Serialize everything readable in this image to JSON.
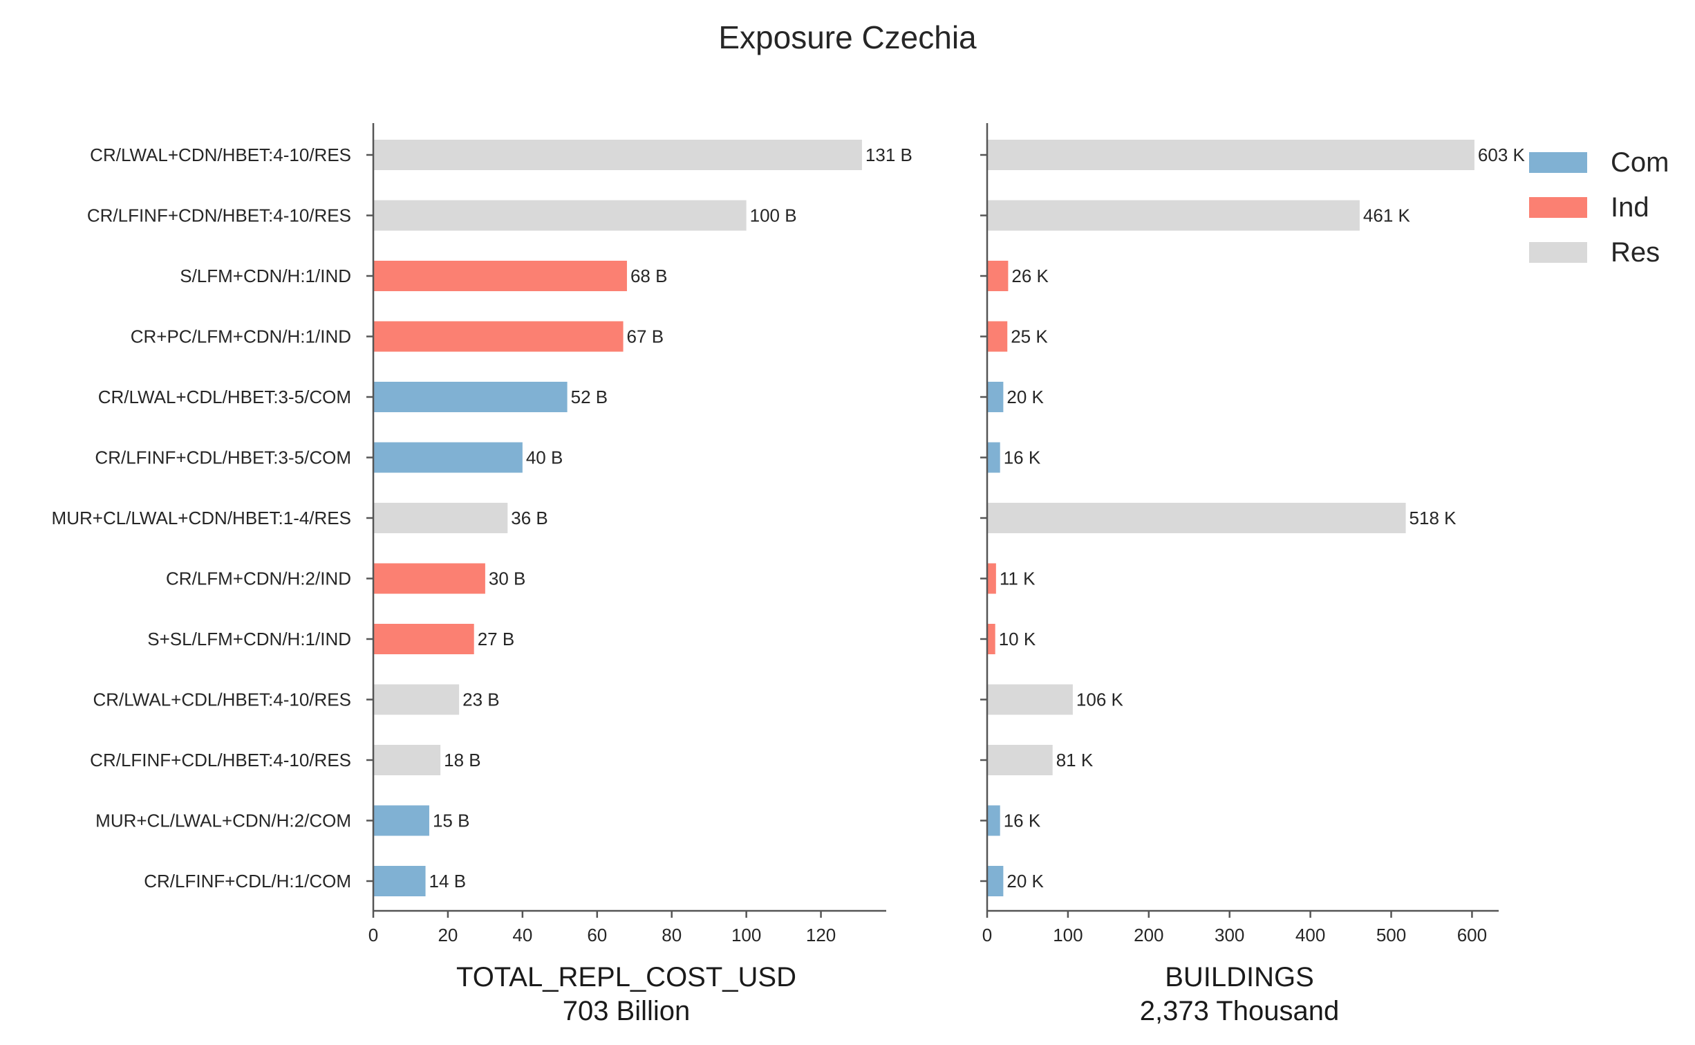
{
  "chart_data": {
    "type": "bar",
    "orientation": "horizontal",
    "title": "Exposure Czechia",
    "categories": [
      "CR/LWAL+CDN/HBET:4-10/RES",
      "CR/LFINF+CDN/HBET:4-10/RES",
      "S/LFM+CDN/H:1/IND",
      "CR+PC/LFM+CDN/H:1/IND",
      "CR/LWAL+CDL/HBET:3-5/COM",
      "CR/LFINF+CDL/HBET:3-5/COM",
      "MUR+CL/LWAL+CDN/HBET:1-4/RES",
      "CR/LFM+CDN/H:2/IND",
      "S+SL/LFM+CDN/H:1/IND",
      "CR/LWAL+CDL/HBET:4-10/RES",
      "CR/LFINF+CDL/HBET:4-10/RES",
      "MUR+CL/LWAL+CDN/H:2/COM",
      "CR/LFINF+CDL/H:1/COM"
    ],
    "occupancy": [
      "Res",
      "Res",
      "Ind",
      "Ind",
      "Com",
      "Com",
      "Res",
      "Ind",
      "Ind",
      "Res",
      "Res",
      "Com",
      "Com"
    ],
    "legend": {
      "placement": "top-right",
      "entries": [
        {
          "label": "Com",
          "color": "#80b1d3"
        },
        {
          "label": "Ind",
          "color": "#fb8072"
        },
        {
          "label": "Res",
          "color": "#d9d9d9"
        }
      ]
    },
    "panels": [
      {
        "xlabel": "TOTAL_REPL_COST_USD",
        "subtitle": "703 Billion",
        "xlim": [
          0,
          137.5
        ],
        "ticks": [
          0,
          20,
          40,
          60,
          80,
          100,
          120
        ],
        "tick_labels": [
          "0",
          "20",
          "40",
          "60",
          "80",
          "100",
          "120"
        ],
        "values": [
          131,
          100,
          68,
          67,
          52,
          40,
          36,
          30,
          27,
          23,
          18,
          15,
          14
        ],
        "value_labels": [
          "131 B",
          "100 B",
          "68 B",
          "67 B",
          "52 B",
          "40 B",
          "36 B",
          "30 B",
          "27 B",
          "23 B",
          "18 B",
          "15 B",
          "14 B"
        ],
        "show_category_labels": true
      },
      {
        "xlabel": "BUILDINGS",
        "subtitle": "2,373 Thousand",
        "xlim": [
          0,
          633
        ],
        "ticks": [
          0,
          100,
          200,
          300,
          400,
          500,
          600
        ],
        "tick_labels": [
          "0",
          "100",
          "200",
          "300",
          "400",
          "500",
          "600"
        ],
        "values": [
          603,
          461,
          26,
          25,
          20,
          16,
          518,
          11,
          10,
          106,
          81,
          16,
          20
        ],
        "value_labels": [
          "603 K",
          "461 K",
          "26 K",
          "25 K",
          "20 K",
          "16 K",
          "518 K",
          "11 K",
          "10 K",
          "106 K",
          "81 K",
          "16 K",
          "20 K"
        ],
        "show_category_labels": false
      }
    ],
    "grid": false
  }
}
